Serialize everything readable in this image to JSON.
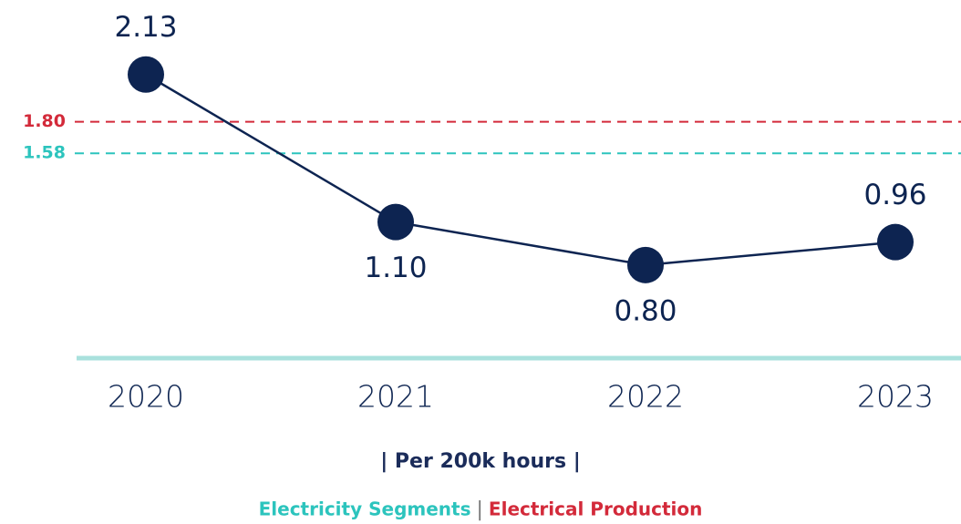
{
  "chart_data": {
    "type": "line",
    "categories": [
      "2020",
      "2021",
      "2022",
      "2023"
    ],
    "values": [
      2.13,
      1.1,
      0.8,
      0.96
    ],
    "value_labels": [
      "2.13",
      "1.10",
      "0.80",
      "0.96"
    ],
    "color": "#0d2451",
    "ylim": [
      0.15,
      2.65
    ],
    "reference_lines": [
      {
        "name": "Electricity Segments",
        "value": 1.58,
        "label": "1.58",
        "color": "#2cc4bd"
      },
      {
        "name": "Electrical Production",
        "value": 1.8,
        "label": "1.80",
        "color": "#d32a3a"
      }
    ],
    "legend_separator": "|",
    "x_axis_label": "| Per 200k hours |",
    "axis_color": "#a9e1dd"
  }
}
